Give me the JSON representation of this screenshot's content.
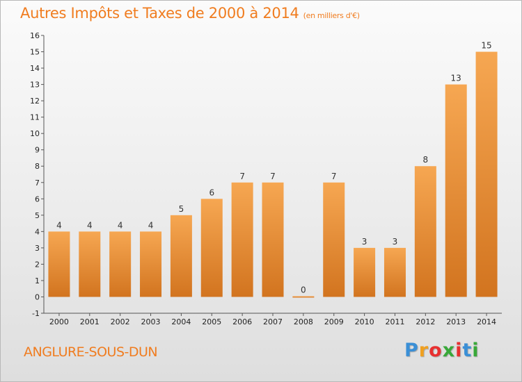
{
  "title": "Autres Impôts et Taxes de 2000 à 2014",
  "subtitle": "(en milliers d'€)",
  "commune": "ANGLURE-SOUS-DUN",
  "logo": {
    "letters": [
      "P",
      "r",
      "o",
      "x",
      "i",
      "t",
      "i"
    ],
    "colors": [
      "#3a8fd6",
      "#f0a020",
      "#e83030",
      "#38a838",
      "#e83030",
      "#3a8fd6",
      "#38a838"
    ]
  },
  "colors": {
    "bar_top": "#f6a752",
    "bar_bottom": "#d2741f",
    "title": "#f07c1f"
  },
  "chart_data": {
    "type": "bar",
    "categories": [
      "2000",
      "2001",
      "2002",
      "2003",
      "2004",
      "2005",
      "2006",
      "2007",
      "2008",
      "2009",
      "2010",
      "2011",
      "2012",
      "2013",
      "2014"
    ],
    "values": [
      4,
      4,
      4,
      4,
      5,
      6,
      7,
      7,
      0,
      7,
      3,
      3,
      8,
      13,
      15
    ],
    "data_labels": [
      "4",
      "4",
      "4",
      "4",
      "5",
      "6",
      "7",
      "7",
      "0",
      "7",
      "3",
      "3",
      "8",
      "13",
      "15"
    ],
    "title": "Autres Impôts et Taxes de 2000 à 2014",
    "ylim": [
      -1,
      16
    ],
    "yticks": [
      -1,
      0,
      1,
      2,
      3,
      4,
      5,
      6,
      7,
      8,
      9,
      10,
      11,
      12,
      13,
      14,
      15,
      16
    ],
    "grid": false
  }
}
